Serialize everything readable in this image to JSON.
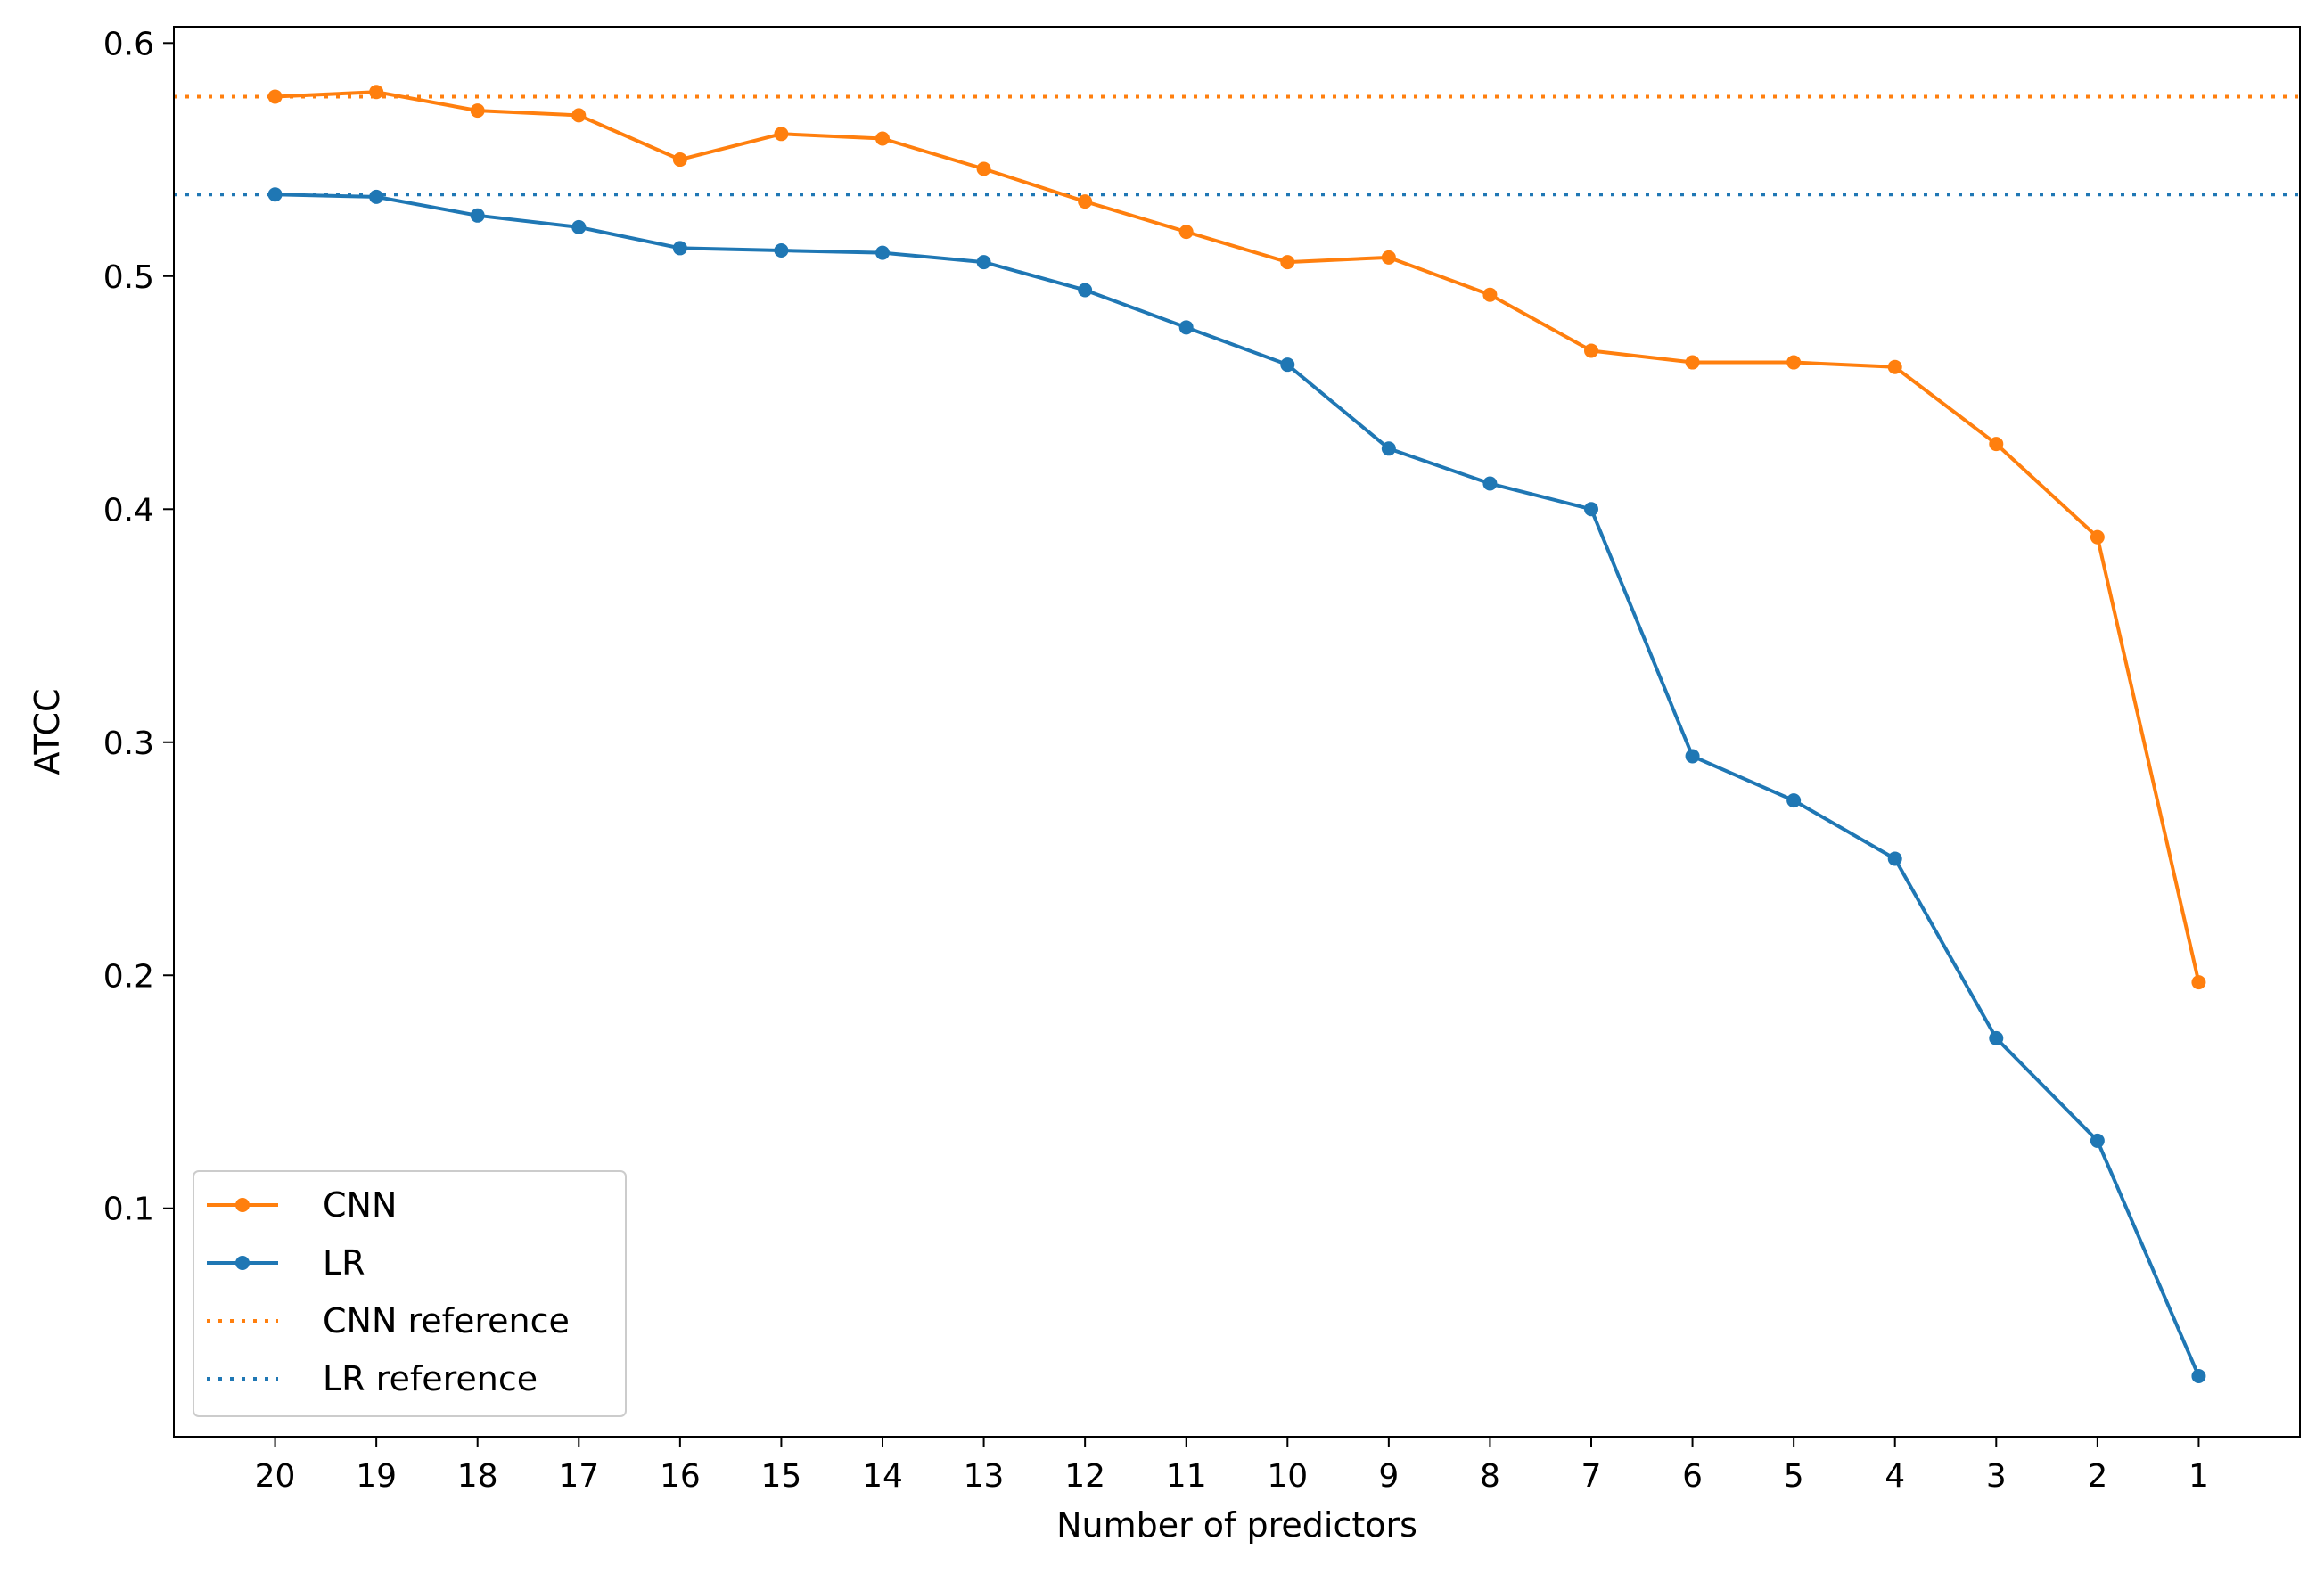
{
  "chart_data": {
    "type": "line",
    "title": "",
    "xlabel": "Number of predictors",
    "ylabel": "ATCC",
    "x": [
      20,
      19,
      18,
      17,
      16,
      15,
      14,
      13,
      12,
      11,
      10,
      9,
      8,
      7,
      6,
      5,
      4,
      3,
      2,
      1
    ],
    "x_tick_labels": [
      "20",
      "19",
      "18",
      "17",
      "16",
      "15",
      "14",
      "13",
      "12",
      "11",
      "10",
      "9",
      "8",
      "7",
      "6",
      "5",
      "4",
      "3",
      "2",
      "1"
    ],
    "y_ticks": [
      0.1,
      0.2,
      0.3,
      0.4,
      0.5,
      0.6
    ],
    "y_tick_labels": [
      "0.1",
      "0.2",
      "0.3",
      "0.4",
      "0.5",
      "0.6"
    ],
    "ylim": [
      0.002,
      0.607
    ],
    "x_order": "descending",
    "grid": false,
    "legend_position": "lower-left",
    "series": [
      {
        "name": "CNN",
        "color": "#ff7f0e",
        "style": "solid-with-markers",
        "values": [
          0.577,
          0.579,
          0.571,
          0.569,
          0.55,
          0.561,
          0.559,
          0.546,
          0.532,
          0.519,
          0.506,
          0.508,
          0.492,
          0.468,
          0.463,
          0.463,
          0.461,
          0.428,
          0.388,
          0.197
        ]
      },
      {
        "name": "LR",
        "color": "#1f77b4",
        "style": "solid-with-markers",
        "values": [
          0.535,
          0.534,
          0.526,
          0.521,
          0.512,
          0.511,
          0.51,
          0.506,
          0.494,
          0.478,
          0.462,
          0.426,
          0.411,
          0.4,
          0.294,
          0.275,
          0.25,
          0.173,
          0.129,
          0.028
        ]
      }
    ],
    "reference_lines": [
      {
        "name": "CNN reference",
        "color": "#ff7f0e",
        "style": "dotted",
        "y": 0.577
      },
      {
        "name": "LR reference",
        "color": "#1f77b4",
        "style": "dotted",
        "y": 0.535
      }
    ]
  }
}
